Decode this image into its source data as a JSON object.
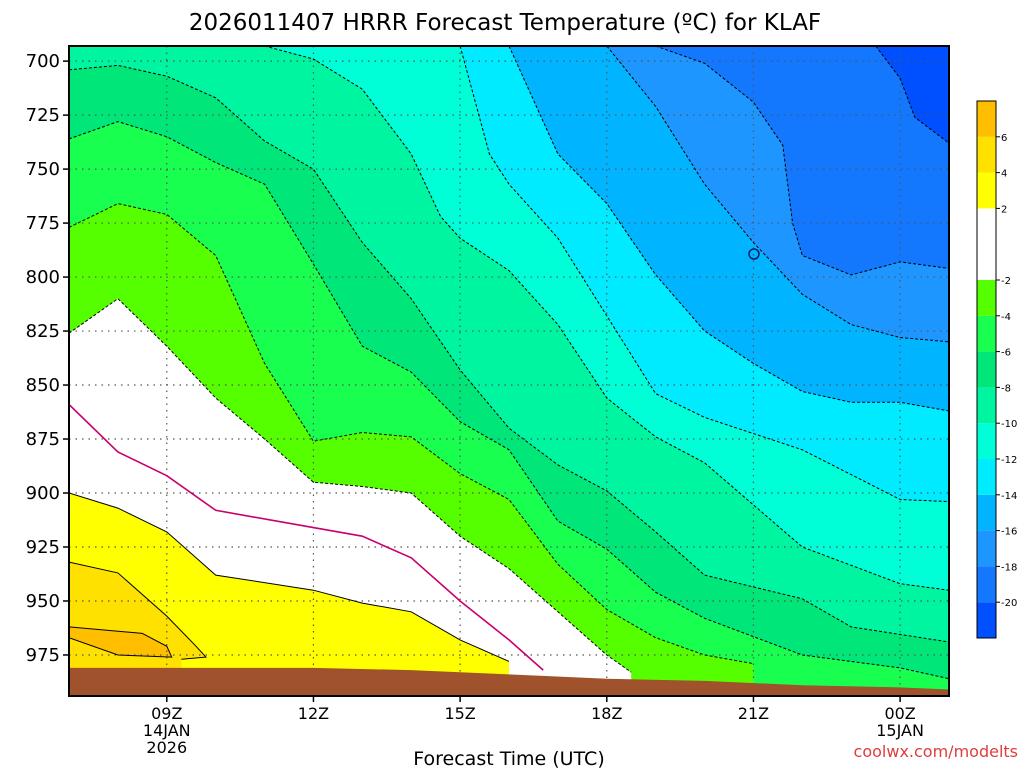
{
  "chart_data": {
    "type": "heatmap",
    "title": "2026011407 HRRR Forecast Temperature (ºC) for KLAF",
    "xlabel": "Forecast Time (UTC)",
    "ylabel": "",
    "credit": "coolwx.com/modelts",
    "x_ticks": [
      {
        "h": 9,
        "lines": [
          "09Z",
          "14JAN",
          "2026"
        ]
      },
      {
        "h": 12,
        "lines": [
          "12Z"
        ]
      },
      {
        "h": 15,
        "lines": [
          "15Z"
        ]
      },
      {
        "h": 18,
        "lines": [
          "18Z"
        ]
      },
      {
        "h": 21,
        "lines": [
          "21Z"
        ]
      },
      {
        "h": 24,
        "lines": [
          "00Z",
          "15JAN"
        ]
      }
    ],
    "y_ticks": [
      700,
      725,
      750,
      775,
      800,
      825,
      850,
      875,
      900,
      925,
      950,
      975
    ],
    "xlim": [
      7,
      25
    ],
    "ylim": [
      994,
      693
    ],
    "grid": true,
    "colorbar": {
      "placement": "right",
      "range": [
        -22,
        8
      ],
      "bands": [
        {
          "lo": -22,
          "hi": -20,
          "color": "#0050ff"
        },
        {
          "lo": -20,
          "hi": -18,
          "color": "#1478ff"
        },
        {
          "lo": -18,
          "hi": -16,
          "color": "#1e96ff"
        },
        {
          "lo": -16,
          "hi": -14,
          "color": "#00b4ff"
        },
        {
          "lo": -14,
          "hi": -12,
          "color": "#00ebff"
        },
        {
          "lo": -12,
          "hi": -10,
          "color": "#00ffd7"
        },
        {
          "lo": -10,
          "hi": -8,
          "color": "#00f5a0"
        },
        {
          "lo": -8,
          "hi": -6,
          "color": "#00e678"
        },
        {
          "lo": -6,
          "hi": -4,
          "color": "#19ff50"
        },
        {
          "lo": -4,
          "hi": -2,
          "color": "#55ff00"
        },
        {
          "lo": -2,
          "hi": 2,
          "color": "#ffffff"
        },
        {
          "lo": 2,
          "hi": 4,
          "color": "#ffff00"
        },
        {
          "lo": 4,
          "hi": 6,
          "color": "#ffe100"
        },
        {
          "lo": 6,
          "hi": 8,
          "color": "#ffbe00"
        }
      ],
      "tick_values": [
        6,
        4,
        2,
        -2,
        -4,
        -6,
        -8,
        -10,
        -12,
        -14,
        -16,
        -18,
        -20
      ]
    },
    "ground_color": "#a0522d",
    "contours": [
      {
        "level": 4,
        "style": "solid",
        "color": "#000000",
        "points": [
          [
            7,
            967
          ],
          [
            8,
            975
          ],
          [
            9.1,
            976
          ],
          [
            9,
            971
          ],
          [
            8.5,
            965
          ],
          [
            7,
            962
          ]
        ]
      },
      {
        "level": 2,
        "style": "solid",
        "color": "#000000",
        "points": [
          [
            7,
            932
          ],
          [
            8,
            937
          ],
          [
            9,
            957
          ],
          [
            9.6,
            971
          ],
          [
            9.8,
            976
          ],
          [
            9.3,
            977
          ]
        ]
      },
      {
        "level": 0,
        "style": "solid",
        "color": "#000000",
        "points": [
          [
            7,
            900
          ],
          [
            8,
            907
          ],
          [
            9,
            918
          ],
          [
            10,
            938
          ],
          [
            12,
            945
          ],
          [
            13,
            951
          ],
          [
            14,
            955
          ],
          [
            15,
            968
          ],
          [
            16,
            978
          ]
        ]
      },
      {
        "level": -1,
        "style": "solid",
        "color": "#c8006e",
        "points": [
          [
            7,
            859
          ],
          [
            8,
            881
          ],
          [
            9,
            892
          ],
          [
            10,
            908
          ],
          [
            12,
            916
          ],
          [
            13,
            920
          ],
          [
            14,
            930
          ],
          [
            15,
            950
          ],
          [
            16,
            968
          ],
          [
            16.7,
            982
          ]
        ]
      },
      {
        "level": -2,
        "style": "dashed",
        "color": "#000000",
        "points": [
          [
            7,
            826
          ],
          [
            8,
            810
          ],
          [
            9,
            832
          ],
          [
            10,
            856
          ],
          [
            11,
            875
          ],
          [
            12,
            895
          ],
          [
            13,
            897
          ],
          [
            14,
            900
          ],
          [
            15,
            920
          ],
          [
            16,
            935
          ],
          [
            17,
            955
          ],
          [
            18,
            975
          ],
          [
            18.5,
            983
          ]
        ]
      },
      {
        "level": -4,
        "style": "dashed",
        "color": "#000000",
        "points": [
          [
            7,
            777
          ],
          [
            8,
            766
          ],
          [
            9,
            771
          ],
          [
            10,
            790
          ],
          [
            11,
            840
          ],
          [
            12,
            876
          ],
          [
            13,
            872
          ],
          [
            14,
            874
          ],
          [
            15,
            891
          ],
          [
            16,
            903
          ],
          [
            17,
            933
          ],
          [
            18,
            954
          ],
          [
            19,
            967
          ],
          [
            20,
            975
          ],
          [
            21,
            979
          ]
        ]
      },
      {
        "level": -6,
        "style": "dashed",
        "color": "#000000",
        "points": [
          [
            7,
            736
          ],
          [
            8,
            728
          ],
          [
            9,
            735
          ],
          [
            10,
            747
          ],
          [
            11,
            757
          ],
          [
            12,
            794
          ],
          [
            13,
            832
          ],
          [
            14,
            844
          ],
          [
            15,
            867
          ],
          [
            16,
            880
          ],
          [
            17,
            913
          ],
          [
            18,
            926
          ],
          [
            19,
            946
          ],
          [
            20,
            958
          ],
          [
            22,
            975
          ],
          [
            24,
            981
          ],
          [
            25,
            986
          ]
        ]
      },
      {
        "level": -8,
        "style": "dashed",
        "color": "#000000",
        "points": [
          [
            7,
            704
          ],
          [
            8,
            702
          ],
          [
            9,
            707
          ],
          [
            10,
            717
          ],
          [
            11,
            737
          ],
          [
            12,
            750
          ],
          [
            13,
            784
          ],
          [
            14,
            810
          ],
          [
            15,
            843
          ],
          [
            16,
            870
          ],
          [
            17,
            887
          ],
          [
            18,
            899
          ],
          [
            19,
            918
          ],
          [
            20,
            938
          ],
          [
            22,
            949
          ],
          [
            23,
            962
          ],
          [
            25,
            969
          ]
        ]
      },
      {
        "level": -10,
        "style": "dashed",
        "color": "#000000",
        "points": [
          [
            11,
            693
          ],
          [
            12,
            699
          ],
          [
            13,
            713
          ],
          [
            14,
            743
          ],
          [
            14.6,
            772
          ],
          [
            15,
            782
          ],
          [
            16,
            797
          ],
          [
            17,
            822
          ],
          [
            18,
            856
          ],
          [
            19,
            874
          ],
          [
            20,
            886
          ],
          [
            22,
            925
          ],
          [
            24,
            942
          ],
          [
            25,
            945
          ]
        ]
      },
      {
        "level": -12,
        "style": "dashed",
        "color": "#000000",
        "points": [
          [
            15,
            693
          ],
          [
            15.6,
            743
          ],
          [
            16,
            757
          ],
          [
            17,
            782
          ],
          [
            18,
            818
          ],
          [
            19,
            854
          ],
          [
            20,
            865
          ],
          [
            22,
            880
          ],
          [
            24,
            903
          ],
          [
            25,
            904
          ]
        ]
      },
      {
        "level": -14,
        "style": "dashed",
        "color": "#000000",
        "points": [
          [
            16,
            693
          ],
          [
            17,
            743
          ],
          [
            18,
            766
          ],
          [
            19,
            799
          ],
          [
            20,
            825
          ],
          [
            21,
            840
          ],
          [
            22,
            853
          ],
          [
            23,
            858
          ],
          [
            24,
            858
          ],
          [
            25,
            862
          ]
        ]
      },
      {
        "level": -16,
        "style": "dashed",
        "color": "#000000",
        "points": [
          [
            18,
            693
          ],
          [
            19,
            721
          ],
          [
            20,
            757
          ],
          [
            21,
            784
          ],
          [
            22,
            808
          ],
          [
            23,
            822
          ],
          [
            24,
            828
          ],
          [
            25,
            830
          ]
        ]
      },
      {
        "level": -18,
        "style": "dashed",
        "color": "#000000",
        "points": [
          [
            19,
            693
          ],
          [
            20,
            701
          ],
          [
            21,
            719
          ],
          [
            21.6,
            739
          ],
          [
            21.8,
            775
          ],
          [
            22,
            790
          ],
          [
            23,
            799
          ],
          [
            24,
            793
          ],
          [
            25,
            796
          ]
        ]
      },
      {
        "level": -20,
        "style": "dashed",
        "color": "#000000",
        "points": [
          [
            23.5,
            693
          ],
          [
            24,
            708
          ],
          [
            24.3,
            726
          ],
          [
            25,
            738
          ],
          [
            25,
            750
          ]
        ]
      }
    ],
    "ground_points": [
      [
        7,
        981
      ],
      [
        9,
        981
      ],
      [
        12,
        981
      ],
      [
        14,
        982
      ],
      [
        16,
        984
      ],
      [
        18,
        986
      ],
      [
        20,
        987
      ],
      [
        22,
        989
      ],
      [
        24,
        990
      ],
      [
        25,
        991
      ]
    ]
  }
}
